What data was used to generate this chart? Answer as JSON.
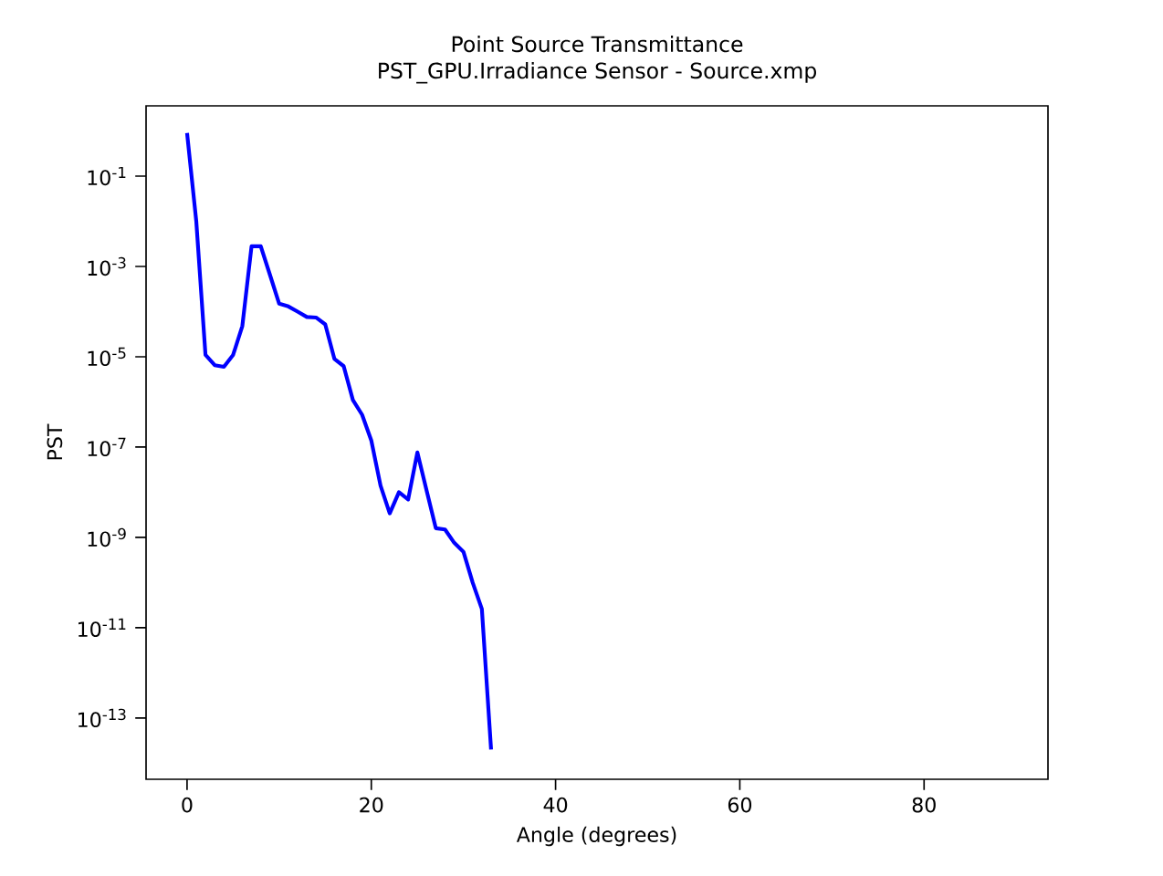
{
  "chart_data": {
    "type": "line",
    "title": "Point Source Transmittance",
    "subtitle": "PST_GPU.Irradiance Sensor - Source.xmp",
    "xlabel": "Angle (degrees)",
    "ylabel": "PST",
    "log": "y",
    "grid": false,
    "marker": "none",
    "line_style": "solid",
    "xlim": [
      -4.45,
      93.45
    ],
    "ylim": [
      4.4e-15,
      3.6
    ],
    "xticks": [
      0,
      20,
      40,
      60,
      80
    ],
    "yticks": [
      {
        "value": 0.1,
        "label": "10$^{-1}$"
      },
      {
        "value": 0.001,
        "label": "10$^{-3}$"
      },
      {
        "value": 1e-05,
        "label": "10$^{-5}$"
      },
      {
        "value": 1e-07,
        "label": "10$^{-7}$"
      },
      {
        "value": 1e-09,
        "label": "10$^{-9}$"
      },
      {
        "value": 1e-11,
        "label": "10$^{-11}$"
      },
      {
        "value": 1e-13,
        "label": "10$^{-13}$"
      }
    ],
    "series": [
      {
        "color": "#0000ff",
        "x": [
          0,
          1,
          2,
          3,
          4,
          5,
          6,
          7,
          8,
          9,
          10,
          11,
          12,
          13,
          14,
          15,
          16,
          17,
          18,
          19,
          20,
          21,
          22,
          23,
          24,
          25,
          26,
          27,
          28,
          29,
          30,
          31,
          32,
          33
        ],
        "values": [
          0.9,
          0.01,
          1.1e-05,
          6.5e-06,
          6e-06,
          1.1e-05,
          4.8e-05,
          0.0028,
          0.0028,
          0.00065,
          0.00015,
          0.00013,
          0.0001,
          7.6e-05,
          7.4e-05,
          5.2e-05,
          8.9e-06,
          6.2e-06,
          1.1e-06,
          5.2e-07,
          1.4e-07,
          1.4e-08,
          3.4e-09,
          1e-08,
          6.9e-09,
          7.6e-08,
          1.1e-08,
          1.6e-09,
          1.5e-09,
          7.6e-10,
          4.8e-10,
          1e-10,
          2.6e-11,
          2e-14
        ]
      }
    ]
  }
}
